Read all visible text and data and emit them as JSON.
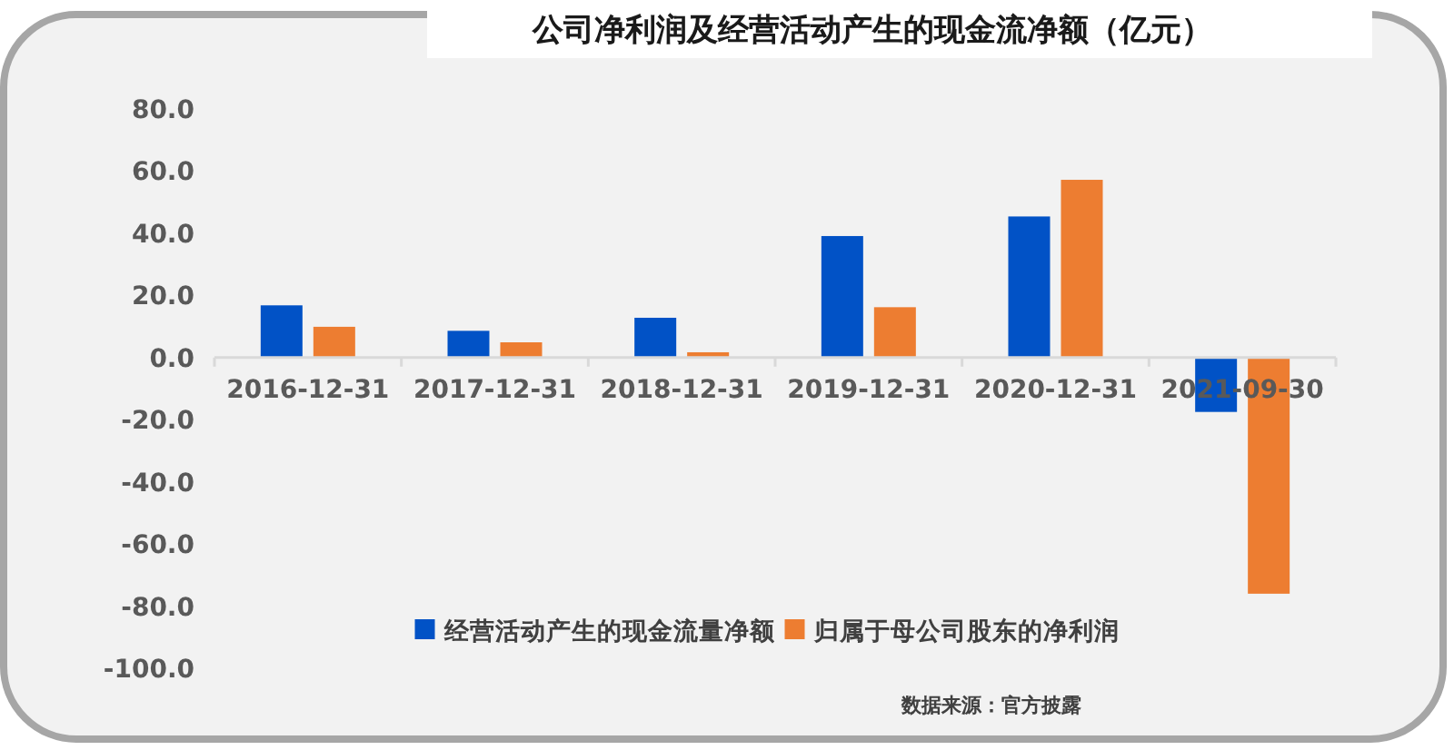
{
  "chart_data": {
    "type": "bar",
    "title": "公司净利润及经营活动产生的现金流净额（亿元）",
    "categories": [
      "2016-12-31",
      "2017-12-31",
      "2018-12-31",
      "2019-12-31",
      "2020-12-31",
      "2021-09-30"
    ],
    "series": [
      {
        "name": "经营活动产生的现金流量净额",
        "color": "#0152c6",
        "values": [
          16.8,
          8.6,
          12.8,
          39.1,
          45.4,
          -17.5
        ]
      },
      {
        "name": "归属于母公司股东的净利润",
        "color": "#ed7d31",
        "values": [
          9.9,
          4.9,
          1.7,
          16.2,
          57.2,
          -76.0
        ]
      }
    ],
    "ylim": [
      -100,
      80
    ],
    "yticks": [
      {
        "value": -100,
        "label": "-100.0"
      },
      {
        "value": -80,
        "label": "-80.0"
      },
      {
        "value": -60,
        "label": "-60.0"
      },
      {
        "value": -40,
        "label": "-40.0"
      },
      {
        "value": -20,
        "label": "-20.0"
      },
      {
        "value": 0,
        "label": "0.0"
      },
      {
        "value": 20,
        "label": "20.0"
      },
      {
        "value": 40,
        "label": "40.0"
      },
      {
        "value": 60,
        "label": "60.0"
      },
      {
        "value": 80,
        "label": "80.0"
      }
    ],
    "grid": false,
    "legend": "bottom",
    "annotations": [
      "数据来源：官方披露"
    ]
  }
}
